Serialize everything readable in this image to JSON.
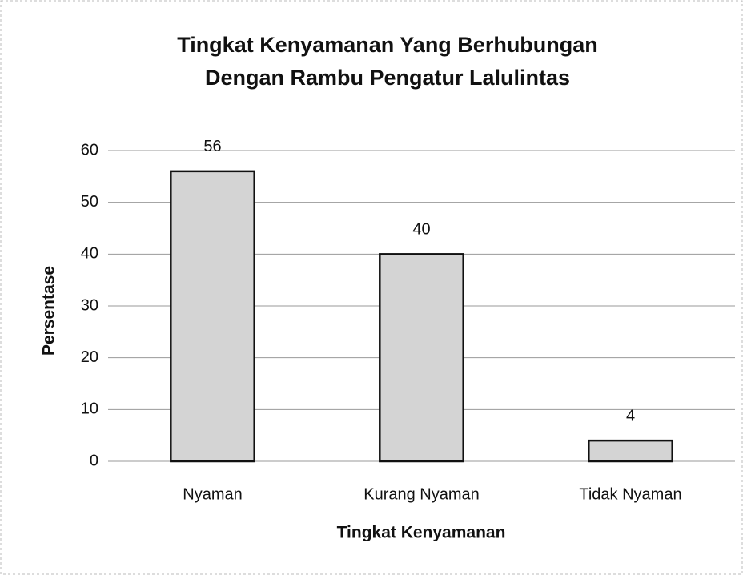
{
  "chart_data": {
    "type": "bar",
    "title": [
      "Tingkat Kenyamanan Yang Berhubungan",
      "Dengan Rambu Pengatur Lalulintas"
    ],
    "x_label": "Tingkat Kenyamanan",
    "y_label": "Persentase",
    "categories": [
      "Nyaman",
      "Kurang Nyaman",
      "Tidak Nyaman"
    ],
    "values": [
      56,
      40,
      4
    ],
    "color": "#d4d4d4",
    "ylim": [
      0,
      60
    ],
    "yticks": [
      0,
      10,
      20,
      30,
      40,
      50,
      60
    ],
    "grid": true
  }
}
